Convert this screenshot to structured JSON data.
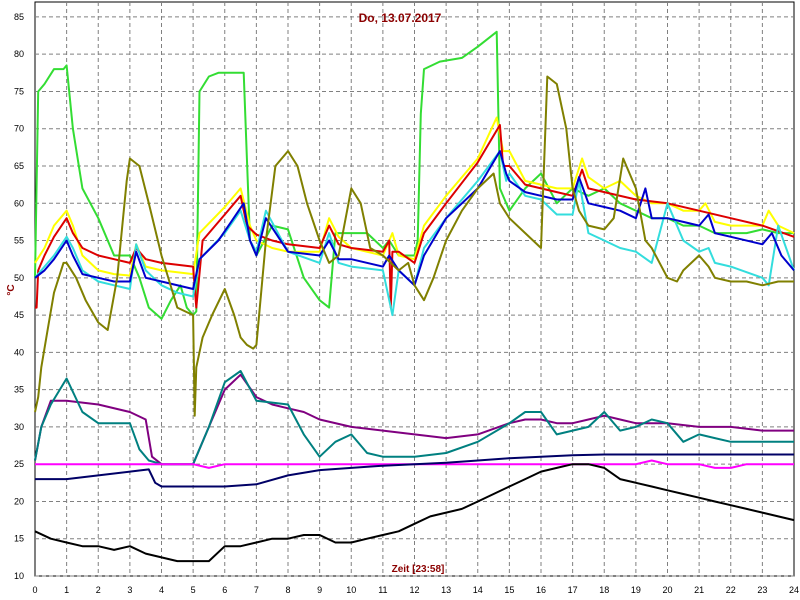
{
  "chart_data": {
    "type": "line",
    "title": "Do, 13.07.2017",
    "xlabel": "Zeit [23:58]",
    "ylabel": "°C",
    "xlim": [
      0,
      24
    ],
    "ylim": [
      10,
      87
    ],
    "grid": true,
    "legend": "none",
    "x_ticks": [
      0,
      1,
      2,
      3,
      4,
      5,
      6,
      7,
      8,
      9,
      10,
      11,
      12,
      13,
      14,
      15,
      16,
      17,
      18,
      19,
      20,
      21,
      22,
      23,
      24
    ],
    "y_ticks": [
      10,
      15,
      20,
      25,
      30,
      35,
      40,
      45,
      50,
      55,
      60,
      65,
      70,
      75,
      80,
      85
    ],
    "series": [
      {
        "color": "#33dd33",
        "x": [
          0,
          0.1,
          0.3,
          0.6,
          0.9,
          1.0,
          1.2,
          1.5,
          2.0,
          2.5,
          3.0,
          3.3,
          3.6,
          4.0,
          4.3,
          4.6,
          4.8,
          5.0,
          5.1,
          5.15,
          5.2,
          5.5,
          5.8,
          6.2,
          6.6,
          6.7,
          6.8,
          7.0,
          7.5,
          8.0,
          8.5,
          9.0,
          9.3,
          9.5,
          10.0,
          10.5,
          11.0,
          11.2,
          11.5,
          12.0,
          12.1,
          12.2,
          12.3,
          12.8,
          13.5,
          14.0,
          14.6,
          14.7,
          15.0,
          15.5,
          16.0,
          16.5,
          17.0,
          17.5,
          18.0,
          18.5,
          19.0,
          19.5,
          20.0,
          20.5,
          21.0,
          21.5,
          22.0,
          22.5,
          23.0,
          23.5,
          24.0
        ],
        "y": [
          50,
          75,
          76,
          78,
          78,
          78.5,
          70,
          62,
          58,
          53,
          53,
          50,
          46,
          44.5,
          47,
          49,
          46,
          45,
          45.5,
          60,
          75,
          77,
          77.5,
          77.5,
          77.5,
          66,
          55,
          53,
          57,
          56.5,
          50,
          47,
          46,
          56,
          56,
          56,
          54,
          55,
          53,
          53,
          55,
          72,
          78,
          79,
          79.5,
          81,
          83,
          62,
          59,
          62,
          64,
          60,
          62,
          61,
          62,
          60,
          59,
          58,
          58,
          57,
          57,
          56,
          56,
          56,
          56.5,
          56,
          56
        ]
      },
      {
        "color": "#ffff00",
        "x": [
          0,
          0.3,
          0.6,
          1.0,
          1.2,
          1.5,
          2.0,
          2.5,
          3.0,
          3.2,
          3.5,
          4.0,
          5.0,
          5.2,
          6.0,
          6.5,
          6.8,
          7.0,
          7.5,
          8.0,
          9.0,
          9.3,
          9.6,
          10.0,
          11.0,
          11.3,
          11.5,
          12.0,
          12.3,
          13.0,
          14.0,
          14.6,
          14.8,
          15.0,
          15.5,
          16.0,
          16.5,
          17.0,
          17.3,
          17.5,
          18.0,
          18.5,
          19.0,
          19.5,
          20.0,
          20.5,
          21.0,
          21.2,
          21.5,
          22.0,
          23.0,
          23.2,
          23.5,
          24.0
        ],
        "y": [
          52,
          54,
          57,
          59,
          57,
          53,
          51,
          50.5,
          50.3,
          54.5,
          51.5,
          51,
          50.5,
          56,
          59.5,
          62,
          57,
          55,
          54,
          53.5,
          53.5,
          58,
          55.5,
          54,
          53,
          56,
          53,
          52.5,
          57,
          61,
          66,
          71.5,
          67,
          67,
          63,
          62.5,
          62,
          62,
          66,
          63.5,
          62,
          63,
          61,
          60,
          60,
          59,
          59,
          60,
          57.5,
          57,
          57,
          59,
          57,
          56
        ]
      },
      {
        "color": "#dd0000",
        "x": [
          0,
          0.05,
          0.1,
          0.3,
          0.6,
          1.0,
          1.2,
          1.5,
          2.0,
          2.5,
          3.0,
          3.2,
          3.5,
          4.0,
          5.0,
          5.1,
          5.3,
          6.0,
          6.5,
          6.7,
          7.0,
          7.5,
          8.0,
          9.0,
          9.3,
          9.6,
          10.0,
          11.0,
          11.2,
          11.25,
          11.3,
          11.5,
          12.0,
          12.3,
          13.0,
          14.0,
          14.7,
          14.8,
          15.0,
          15.5,
          16.0,
          16.5,
          17.0,
          17.3,
          17.5,
          18.0,
          19.0,
          20.0,
          21.0,
          22.0,
          23.0,
          24.0
        ],
        "y": [
          46,
          46,
          51,
          53,
          55.5,
          58,
          56,
          54,
          53,
          52.5,
          52,
          54,
          52.5,
          52,
          51.5,
          46,
          55,
          58.5,
          61,
          57,
          55.8,
          55,
          54.5,
          54,
          57,
          54.5,
          54,
          53.5,
          55,
          46,
          53.5,
          53.5,
          52,
          56,
          60,
          65.5,
          70.5,
          65,
          65,
          62.5,
          62,
          61.5,
          61,
          64.5,
          62,
          61.5,
          60.5,
          60,
          59,
          58,
          57,
          55.5
        ]
      },
      {
        "color": "#33dddd",
        "x": [
          0,
          0.3,
          0.6,
          1.0,
          1.2,
          1.5,
          2.0,
          2.5,
          3.0,
          3.2,
          3.5,
          4.0,
          4.5,
          5.0,
          5.2,
          6.0,
          6.5,
          6.8,
          7.0,
          7.3,
          8.0,
          9.0,
          9.3,
          9.6,
          10.0,
          11.0,
          11.3,
          11.5,
          12.0,
          12.3,
          13.0,
          14.0,
          14.7,
          14.9,
          15.0,
          15.5,
          16.0,
          16.5,
          17.0,
          17.2,
          17.5,
          18.0,
          18.5,
          19.0,
          19.5,
          20.0,
          20.5,
          21.0,
          21.3,
          21.5,
          22.0,
          23.0,
          23.2,
          23.5,
          24.0
        ],
        "y": [
          50,
          51.5,
          53,
          55.5,
          54,
          51,
          49.5,
          49,
          48.5,
          54.5,
          51,
          49,
          48,
          47.5,
          52.5,
          56,
          59,
          55,
          53.5,
          59,
          53.5,
          52,
          56,
          52,
          51.5,
          51,
          45,
          51,
          49,
          54,
          58,
          63,
          67,
          63,
          64,
          61,
          60.5,
          58.5,
          58.5,
          63,
          56,
          55,
          54,
          53.5,
          52,
          60,
          55,
          53.5,
          54,
          52,
          51.5,
          50,
          49,
          57,
          51
        ]
      },
      {
        "color": "#0000cc",
        "x": [
          0,
          0.3,
          0.6,
          1.0,
          1.2,
          1.5,
          2.0,
          2.5,
          3.0,
          3.2,
          3.5,
          4.0,
          5.0,
          5.2,
          5.8,
          6.2,
          6.6,
          6.8,
          7.0,
          7.3,
          8.0,
          9.0,
          9.3,
          9.6,
          10.0,
          11.0,
          11.2,
          11.5,
          12.0,
          12.3,
          13.0,
          14.0,
          14.7,
          14.9,
          15.0,
          15.5,
          16.0,
          16.5,
          17.0,
          17.2,
          17.5,
          18.0,
          18.5,
          19.0,
          19.3,
          19.5,
          20.0,
          20.5,
          21.0,
          21.3,
          21.5,
          22.0,
          23.0,
          23.3,
          23.6,
          24.0
        ],
        "y": [
          50,
          51,
          52.5,
          55,
          53,
          50.5,
          50,
          49.5,
          49.5,
          53.5,
          50,
          49.5,
          48.5,
          52.5,
          55,
          57.5,
          60,
          55,
          53,
          58,
          53.5,
          53,
          55,
          52.5,
          52.5,
          51.5,
          53,
          51,
          49,
          53,
          58,
          62,
          67,
          64,
          63,
          61.5,
          61,
          60.5,
          60.5,
          63.5,
          60,
          59.5,
          59,
          58,
          62,
          58,
          58,
          57.5,
          57,
          58.5,
          56,
          55.5,
          54.5,
          56,
          53,
          51
        ]
      },
      {
        "color": "#808000",
        "x": [
          0,
          0.1,
          0.2,
          0.4,
          0.6,
          0.9,
          1.0,
          1.3,
          1.6,
          2.0,
          2.3,
          2.6,
          2.9,
          3.0,
          3.3,
          3.6,
          4.0,
          4.5,
          5.0,
          5.05,
          5.1,
          5.3,
          5.6,
          6.0,
          6.3,
          6.5,
          6.7,
          6.9,
          7.0,
          7.3,
          7.6,
          8.0,
          8.3,
          8.6,
          9.0,
          9.3,
          9.6,
          10.0,
          10.3,
          10.6,
          11.0,
          11.5,
          11.8,
          12.0,
          12.3,
          12.6,
          13.0,
          13.5,
          14.0,
          14.5,
          14.7,
          15.0,
          15.5,
          16.0,
          16.2,
          16.5,
          16.8,
          17.0,
          17.2,
          17.5,
          18.0,
          18.3,
          18.6,
          19.0,
          19.3,
          19.5,
          20.0,
          20.3,
          20.5,
          21.0,
          21.3,
          21.5,
          22.0,
          22.5,
          23.0,
          23.5,
          24.0
        ],
        "y": [
          32,
          34,
          38,
          43,
          48,
          52,
          52,
          50,
          47,
          44,
          43,
          50,
          63,
          66,
          65,
          60,
          53,
          46,
          45,
          31.5,
          38,
          42,
          45,
          48.5,
          45,
          42,
          41,
          40.5,
          41,
          55,
          65,
          67,
          65,
          60,
          55,
          52,
          53,
          62,
          60,
          54,
          53,
          51,
          52,
          49,
          47,
          50,
          55,
          59,
          62,
          64,
          60,
          58,
          56,
          54,
          77,
          76,
          70,
          62,
          59,
          57,
          56.5,
          58,
          66,
          62,
          55,
          54,
          50,
          49.5,
          51,
          53,
          51.5,
          50,
          49.5,
          49.5,
          49,
          49.5,
          49.5
        ]
      },
      {
        "color": "#800080",
        "x": [
          0,
          0.2,
          0.5,
          1.0,
          2.0,
          3.0,
          3.5,
          3.7,
          4.0,
          5.0,
          5.5,
          6.0,
          6.5,
          7.0,
          7.5,
          8.0,
          8.5,
          9.0,
          10.0,
          11.0,
          12.0,
          13.0,
          14.0,
          15.0,
          15.5,
          16.0,
          16.5,
          17.0,
          17.5,
          18.0,
          18.5,
          19.0,
          20.0,
          21.0,
          22.0,
          23.0,
          24.0
        ],
        "y": [
          25.5,
          30,
          33.5,
          33.5,
          33,
          32,
          31,
          26,
          25,
          25,
          30,
          35,
          37,
          34,
          33,
          32.5,
          32,
          31,
          30,
          29.5,
          29,
          28.5,
          29,
          30.5,
          31,
          31,
          30.5,
          30.5,
          31,
          31.5,
          31,
          30.5,
          30.5,
          30,
          30,
          29.5,
          29.5
        ]
      },
      {
        "color": "#008080",
        "x": [
          0,
          0.2,
          0.5,
          1.0,
          1.5,
          2.0,
          2.5,
          3.0,
          3.3,
          3.6,
          4.0,
          5.0,
          5.5,
          6.0,
          6.5,
          7.0,
          8.0,
          8.5,
          9.0,
          9.5,
          10.0,
          10.5,
          11.0,
          11.5,
          12.0,
          13.0,
          14.0,
          15.0,
          15.5,
          16.0,
          16.5,
          17.0,
          17.5,
          18.0,
          18.5,
          19.0,
          19.5,
          20.0,
          20.5,
          21.0,
          21.5,
          22.0,
          23.0,
          23.5,
          24.0
        ],
        "y": [
          25.5,
          30,
          33,
          36.5,
          32,
          30.5,
          30.5,
          30.5,
          27,
          25.5,
          25,
          25,
          30,
          36,
          37.5,
          33.5,
          33,
          29,
          26,
          28,
          29,
          26.5,
          26,
          26,
          26,
          26.5,
          28,
          30.5,
          32,
          32,
          29,
          29.5,
          30,
          32,
          29.5,
          30,
          31,
          30.5,
          28,
          29,
          28.5,
          28,
          28,
          28,
          28
        ]
      },
      {
        "color": "#ff00ff",
        "x": [
          0,
          1,
          2,
          3,
          4,
          5,
          5.5,
          6,
          7,
          8,
          9,
          10,
          11,
          12,
          13,
          14,
          15,
          16,
          17,
          18,
          19,
          19.5,
          20,
          21,
          21.5,
          22,
          22.5,
          23,
          24
        ],
        "y": [
          25,
          25,
          25,
          25,
          25,
          25,
          24.5,
          25,
          25,
          25,
          25,
          25,
          25,
          25,
          25,
          25,
          25,
          25,
          25,
          25,
          25,
          25.5,
          25,
          25,
          24.5,
          24.5,
          25,
          25,
          25
        ]
      },
      {
        "color": "#000066",
        "x": [
          0,
          1,
          2,
          3,
          3.6,
          3.8,
          4.0,
          5.0,
          6.0,
          7.0,
          8.0,
          9.0,
          10.0,
          11.0,
          12.0,
          13.0,
          14.0,
          15.0,
          16.0,
          17.0,
          18.0,
          19.0,
          20.0,
          21.0,
          22.0,
          23.0,
          24.0
        ],
        "y": [
          23,
          23,
          23.5,
          24,
          24.3,
          22.5,
          22,
          22,
          22,
          22.3,
          23.5,
          24.2,
          24.5,
          24.8,
          25,
          25.2,
          25.5,
          25.8,
          26,
          26.2,
          26.3,
          26.3,
          26.3,
          26.3,
          26.3,
          26.3,
          26.3
        ]
      },
      {
        "color": "#000000",
        "x": [
          0,
          0.5,
          1.0,
          1.5,
          2.0,
          2.5,
          3.0,
          3.5,
          4.0,
          4.5,
          5.0,
          5.5,
          6.0,
          6.5,
          7.0,
          7.5,
          8.0,
          8.5,
          9.0,
          9.5,
          10.0,
          10.5,
          11.0,
          11.5,
          12.0,
          12.5,
          13.0,
          13.5,
          14.0,
          14.5,
          15.0,
          15.5,
          16.0,
          16.5,
          17.0,
          17.5,
          18.0,
          18.5,
          19.0,
          19.5,
          20.0,
          20.5,
          21.0,
          21.5,
          22.0,
          22.5,
          23.0,
          23.5,
          24.0
        ],
        "y": [
          16,
          15,
          14.5,
          14,
          14,
          13.5,
          14,
          13,
          12.5,
          12,
          12,
          12,
          14,
          14,
          14.5,
          15,
          15,
          15.5,
          15.5,
          14.5,
          14.5,
          15,
          15.5,
          16,
          17,
          18,
          18.5,
          19,
          20,
          21,
          22,
          23,
          24,
          24.5,
          25,
          25,
          24.5,
          23,
          22.5,
          22,
          21.5,
          21,
          20.5,
          20,
          19.5,
          19,
          18.5,
          18,
          17.5
        ]
      }
    ]
  }
}
